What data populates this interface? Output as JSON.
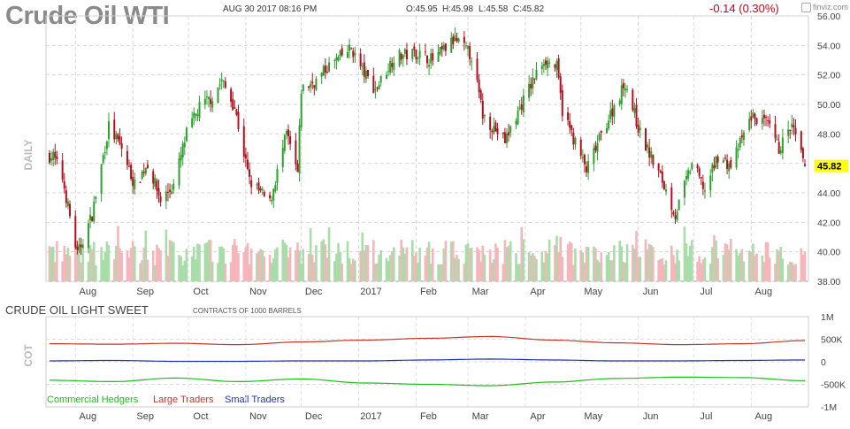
{
  "header": {
    "title": "Crude Oil WTI",
    "date": "AUG 30 2017 08:16 PM",
    "open": "O:45.95",
    "high": "H:45.98",
    "low": "L:45.58",
    "close": "C:45.82",
    "change": "-0.14 (0.30%)",
    "logo_text": "finviz.com"
  },
  "price_panel": {
    "side_label": "DAILY",
    "last_price": "45.82",
    "y_ticks": [
      "56.00",
      "54.00",
      "52.00",
      "50.00",
      "48.00",
      "46.00",
      "44.00",
      "42.00",
      "40.00",
      "38.00"
    ],
    "x_ticks": [
      "Aug",
      "Sep",
      "Oct",
      "Nov",
      "Dec",
      "2017",
      "Feb",
      "Mar",
      "Apr",
      "May",
      "Jun",
      "Jul",
      "Aug"
    ],
    "up_color": "#2ca02c",
    "down_color": "#b0101e",
    "last_price_color": "#ffff00"
  },
  "cot_panel": {
    "title": "CRUDE OIL LIGHT SWEET",
    "units": "CONTRACTS OF 1000 BARRELS",
    "side_label": "COT",
    "y_ticks": [
      "1M",
      "500K",
      "0",
      "-500K",
      "-1M"
    ],
    "legend": [
      {
        "label": "Commercial Hedgers",
        "color": "#22bb22"
      },
      {
        "label": "Large Traders",
        "color": "#c0392b"
      },
      {
        "label": "Small Traders",
        "color": "#2233aa"
      }
    ]
  },
  "chart_data": [
    {
      "type": "candlestick",
      "title": "Crude Oil WTI",
      "ylabel": "",
      "ylim": [
        38,
        56
      ],
      "months": [
        "Aug",
        "Sep",
        "Oct",
        "Nov",
        "Dec",
        "2017",
        "Feb",
        "Mar",
        "Apr",
        "May",
        "Jun",
        "Jul",
        "Aug"
      ],
      "approx_close_path": [
        [
          "2016-07-20",
          46.5
        ],
        [
          "2016-07-25",
          45.0
        ],
        [
          "2016-08-02",
          39.8
        ],
        [
          "2016-08-10",
          42.5
        ],
        [
          "2016-08-19",
          48.5
        ],
        [
          "2016-08-26",
          47.0
        ],
        [
          "2016-09-02",
          44.5
        ],
        [
          "2016-09-09",
          46.0
        ],
        [
          "2016-09-16",
          43.5
        ],
        [
          "2016-09-23",
          44.5
        ],
        [
          "2016-09-30",
          48.0
        ],
        [
          "2016-10-07",
          49.8
        ],
        [
          "2016-10-14",
          50.5
        ],
        [
          "2016-10-19",
          51.6
        ],
        [
          "2016-10-26",
          49.8
        ],
        [
          "2016-11-03",
          44.8
        ],
        [
          "2016-11-14",
          43.3
        ],
        [
          "2016-11-23",
          48.0
        ],
        [
          "2016-11-29",
          45.3
        ],
        [
          "2016-12-01",
          51.0
        ],
        [
          "2016-12-09",
          51.6
        ],
        [
          "2016-12-15",
          52.5
        ],
        [
          "2016-12-28",
          53.8
        ],
        [
          "2017-01-03",
          52.3
        ],
        [
          "2017-01-10",
          51.0
        ],
        [
          "2017-01-20",
          53.2
        ],
        [
          "2017-02-01",
          53.5
        ],
        [
          "2017-02-10",
          53.0
        ],
        [
          "2017-02-22",
          54.4
        ],
        [
          "2017-03-03",
          53.3
        ],
        [
          "2017-03-09",
          49.3
        ],
        [
          "2017-03-21",
          47.5
        ],
        [
          "2017-03-31",
          50.3
        ],
        [
          "2017-04-11",
          53.1
        ],
        [
          "2017-04-18",
          52.5
        ],
        [
          "2017-04-21",
          49.6
        ],
        [
          "2017-05-04",
          45.5
        ],
        [
          "2017-05-15",
          48.8
        ],
        [
          "2017-05-25",
          51.5
        ],
        [
          "2017-06-02",
          48.0
        ],
        [
          "2017-06-14",
          44.8
        ],
        [
          "2017-06-21",
          42.5
        ],
        [
          "2017-06-30",
          46.0
        ],
        [
          "2017-07-07",
          44.2
        ],
        [
          "2017-07-14",
          46.5
        ],
        [
          "2017-07-21",
          45.8
        ],
        [
          "2017-08-01",
          49.2
        ],
        [
          "2017-08-10",
          48.6
        ],
        [
          "2017-08-16",
          47.0
        ],
        [
          "2017-08-23",
          48.5
        ],
        [
          "2017-08-30",
          45.82
        ]
      ],
      "last": {
        "open": 45.95,
        "high": 45.98,
        "low": 45.58,
        "close": 45.82
      }
    },
    {
      "type": "line",
      "title": "CRUDE OIL LIGHT SWEET",
      "ylim": [
        -1000,
        1000
      ],
      "y_unit": "K contracts",
      "x": [
        "Aug",
        "Sep",
        "Oct",
        "Nov",
        "Dec",
        "2017",
        "Feb",
        "Mar",
        "Apr",
        "May",
        "Jun",
        "Jul",
        "Aug"
      ],
      "series": [
        {
          "name": "Commercial Hedgers",
          "values": [
            -410,
            -440,
            -360,
            -440,
            -380,
            -470,
            -500,
            -530,
            -450,
            -370,
            -340,
            -350,
            -420
          ]
        },
        {
          "name": "Large Traders",
          "values": [
            400,
            390,
            410,
            380,
            440,
            480,
            520,
            560,
            480,
            420,
            380,
            400,
            470
          ]
        },
        {
          "name": "Small Traders",
          "values": [
            20,
            30,
            10,
            10,
            20,
            20,
            40,
            60,
            40,
            20,
            20,
            30,
            40
          ]
        }
      ]
    }
  ]
}
